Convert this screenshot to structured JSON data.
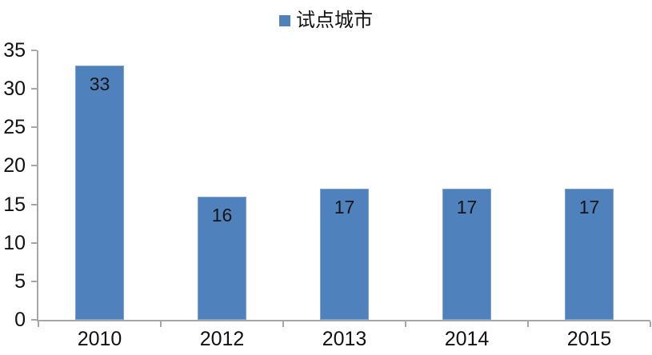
{
  "chart_data": {
    "type": "bar",
    "title": "",
    "legend": "试点城市",
    "legend_position": "top",
    "categories": [
      "2010",
      "2012",
      "2013",
      "2014",
      "2015"
    ],
    "values": [
      33,
      16,
      17,
      17,
      17
    ],
    "xlabel": "",
    "ylabel": "",
    "ylim": [
      0,
      35
    ],
    "yticks": [
      0,
      5,
      10,
      15,
      20,
      25,
      30,
      35
    ],
    "grid": false,
    "bar_color": "#4f81bd",
    "axis_color": "#a6a6a6",
    "text_color": "#111111"
  }
}
